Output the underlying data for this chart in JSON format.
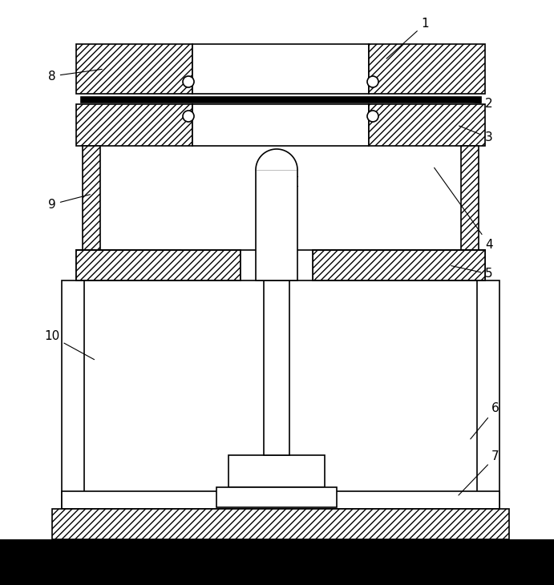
{
  "bg_color": "#ffffff",
  "line_color": "#000000",
  "fig_width": 6.91,
  "fig_height": 7.3,
  "dpi": 100
}
